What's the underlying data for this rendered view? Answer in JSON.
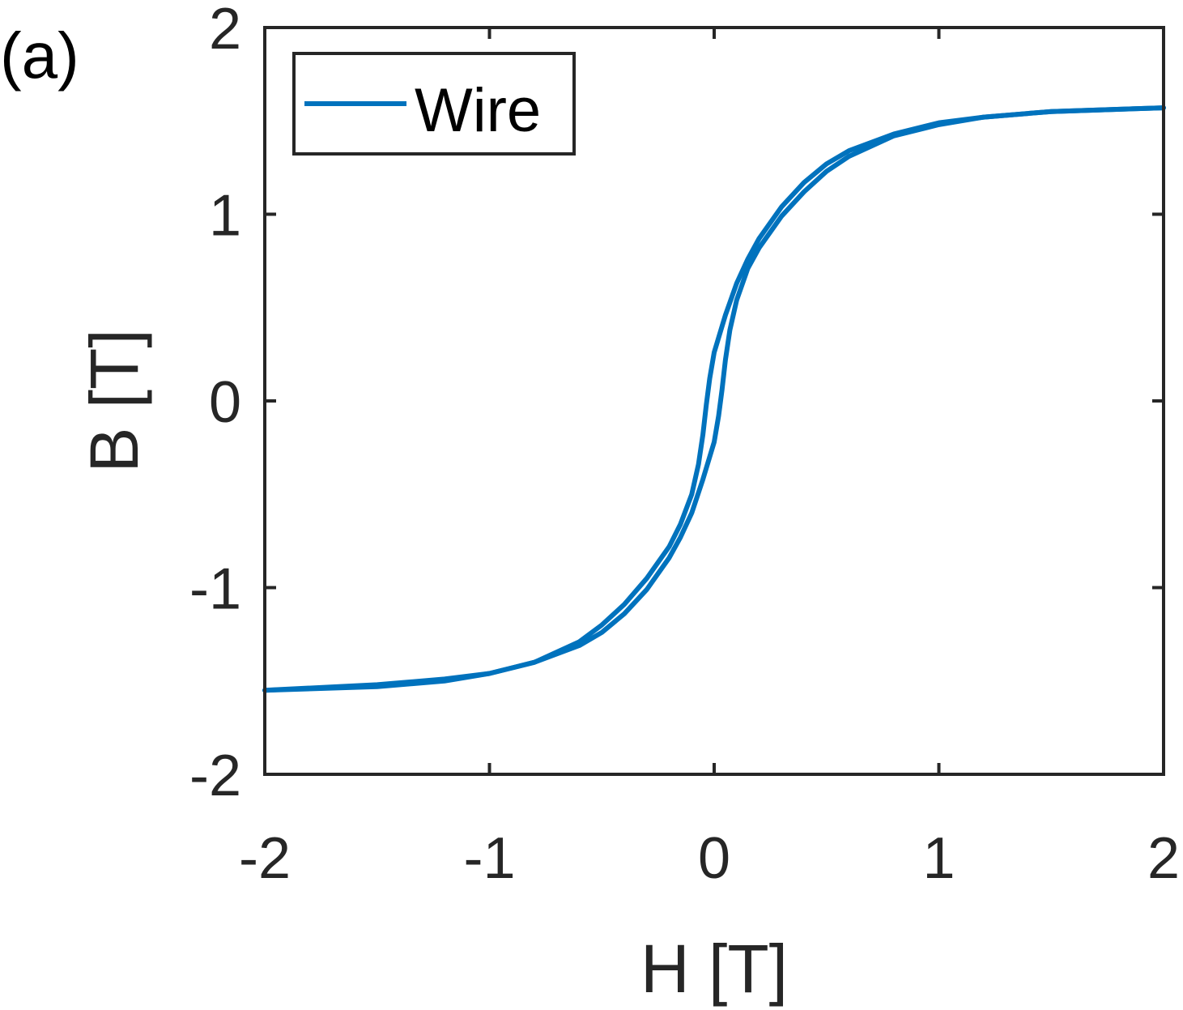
{
  "panel_label": "(a)",
  "chart_data": {
    "type": "line",
    "title": "",
    "xlabel": "H [T]",
    "ylabel": "B [T]",
    "xlim": [
      -2,
      2
    ],
    "ylim": [
      -2,
      2
    ],
    "xticks": [
      -2,
      -1,
      0,
      1,
      2
    ],
    "yticks": [
      -2,
      -1,
      0,
      1,
      2
    ],
    "xtick_labels": [
      "-2",
      "-1",
      "0",
      "1",
      "2"
    ],
    "ytick_labels": [
      "-2",
      "-1",
      "0",
      "1",
      "2"
    ],
    "grid": false,
    "legend": {
      "position": "top-left",
      "entries": [
        "Wire"
      ]
    },
    "series": [
      {
        "name": "Wire",
        "color": "#0072BD",
        "branches": [
          {
            "label": "ascending",
            "x": [
              -2.0,
              -1.5,
              -1.2,
              -1.0,
              -0.8,
              -0.6,
              -0.5,
              -0.4,
              -0.3,
              -0.2,
              -0.15,
              -0.1,
              -0.05,
              0.0,
              0.02,
              0.035,
              0.05,
              0.07,
              0.1,
              0.15,
              0.2,
              0.3,
              0.4,
              0.5,
              0.6,
              0.8,
              1.0,
              1.2,
              1.5,
              2.0
            ],
            "y": [
              -1.55,
              -1.52,
              -1.49,
              -1.46,
              -1.4,
              -1.31,
              -1.24,
              -1.14,
              -1.01,
              -0.84,
              -0.73,
              -0.6,
              -0.42,
              -0.22,
              -0.08,
              0.06,
              0.22,
              0.38,
              0.54,
              0.71,
              0.82,
              0.99,
              1.12,
              1.23,
              1.31,
              1.42,
              1.48,
              1.52,
              1.55,
              1.57
            ]
          },
          {
            "label": "descending",
            "x": [
              2.0,
              1.5,
              1.2,
              1.0,
              0.8,
              0.6,
              0.5,
              0.4,
              0.3,
              0.2,
              0.15,
              0.1,
              0.05,
              0.0,
              -0.02,
              -0.035,
              -0.05,
              -0.07,
              -0.1,
              -0.15,
              -0.2,
              -0.3,
              -0.4,
              -0.5,
              -0.6,
              -0.8,
              -1.0,
              -1.2,
              -1.5,
              -2.0
            ],
            "y": [
              1.57,
              1.55,
              1.52,
              1.49,
              1.43,
              1.34,
              1.27,
              1.17,
              1.04,
              0.87,
              0.76,
              0.63,
              0.46,
              0.26,
              0.12,
              -0.02,
              -0.18,
              -0.34,
              -0.5,
              -0.66,
              -0.78,
              -0.95,
              -1.09,
              -1.2,
              -1.29,
              -1.4,
              -1.46,
              -1.5,
              -1.53,
              -1.55
            ]
          }
        ]
      }
    ]
  }
}
